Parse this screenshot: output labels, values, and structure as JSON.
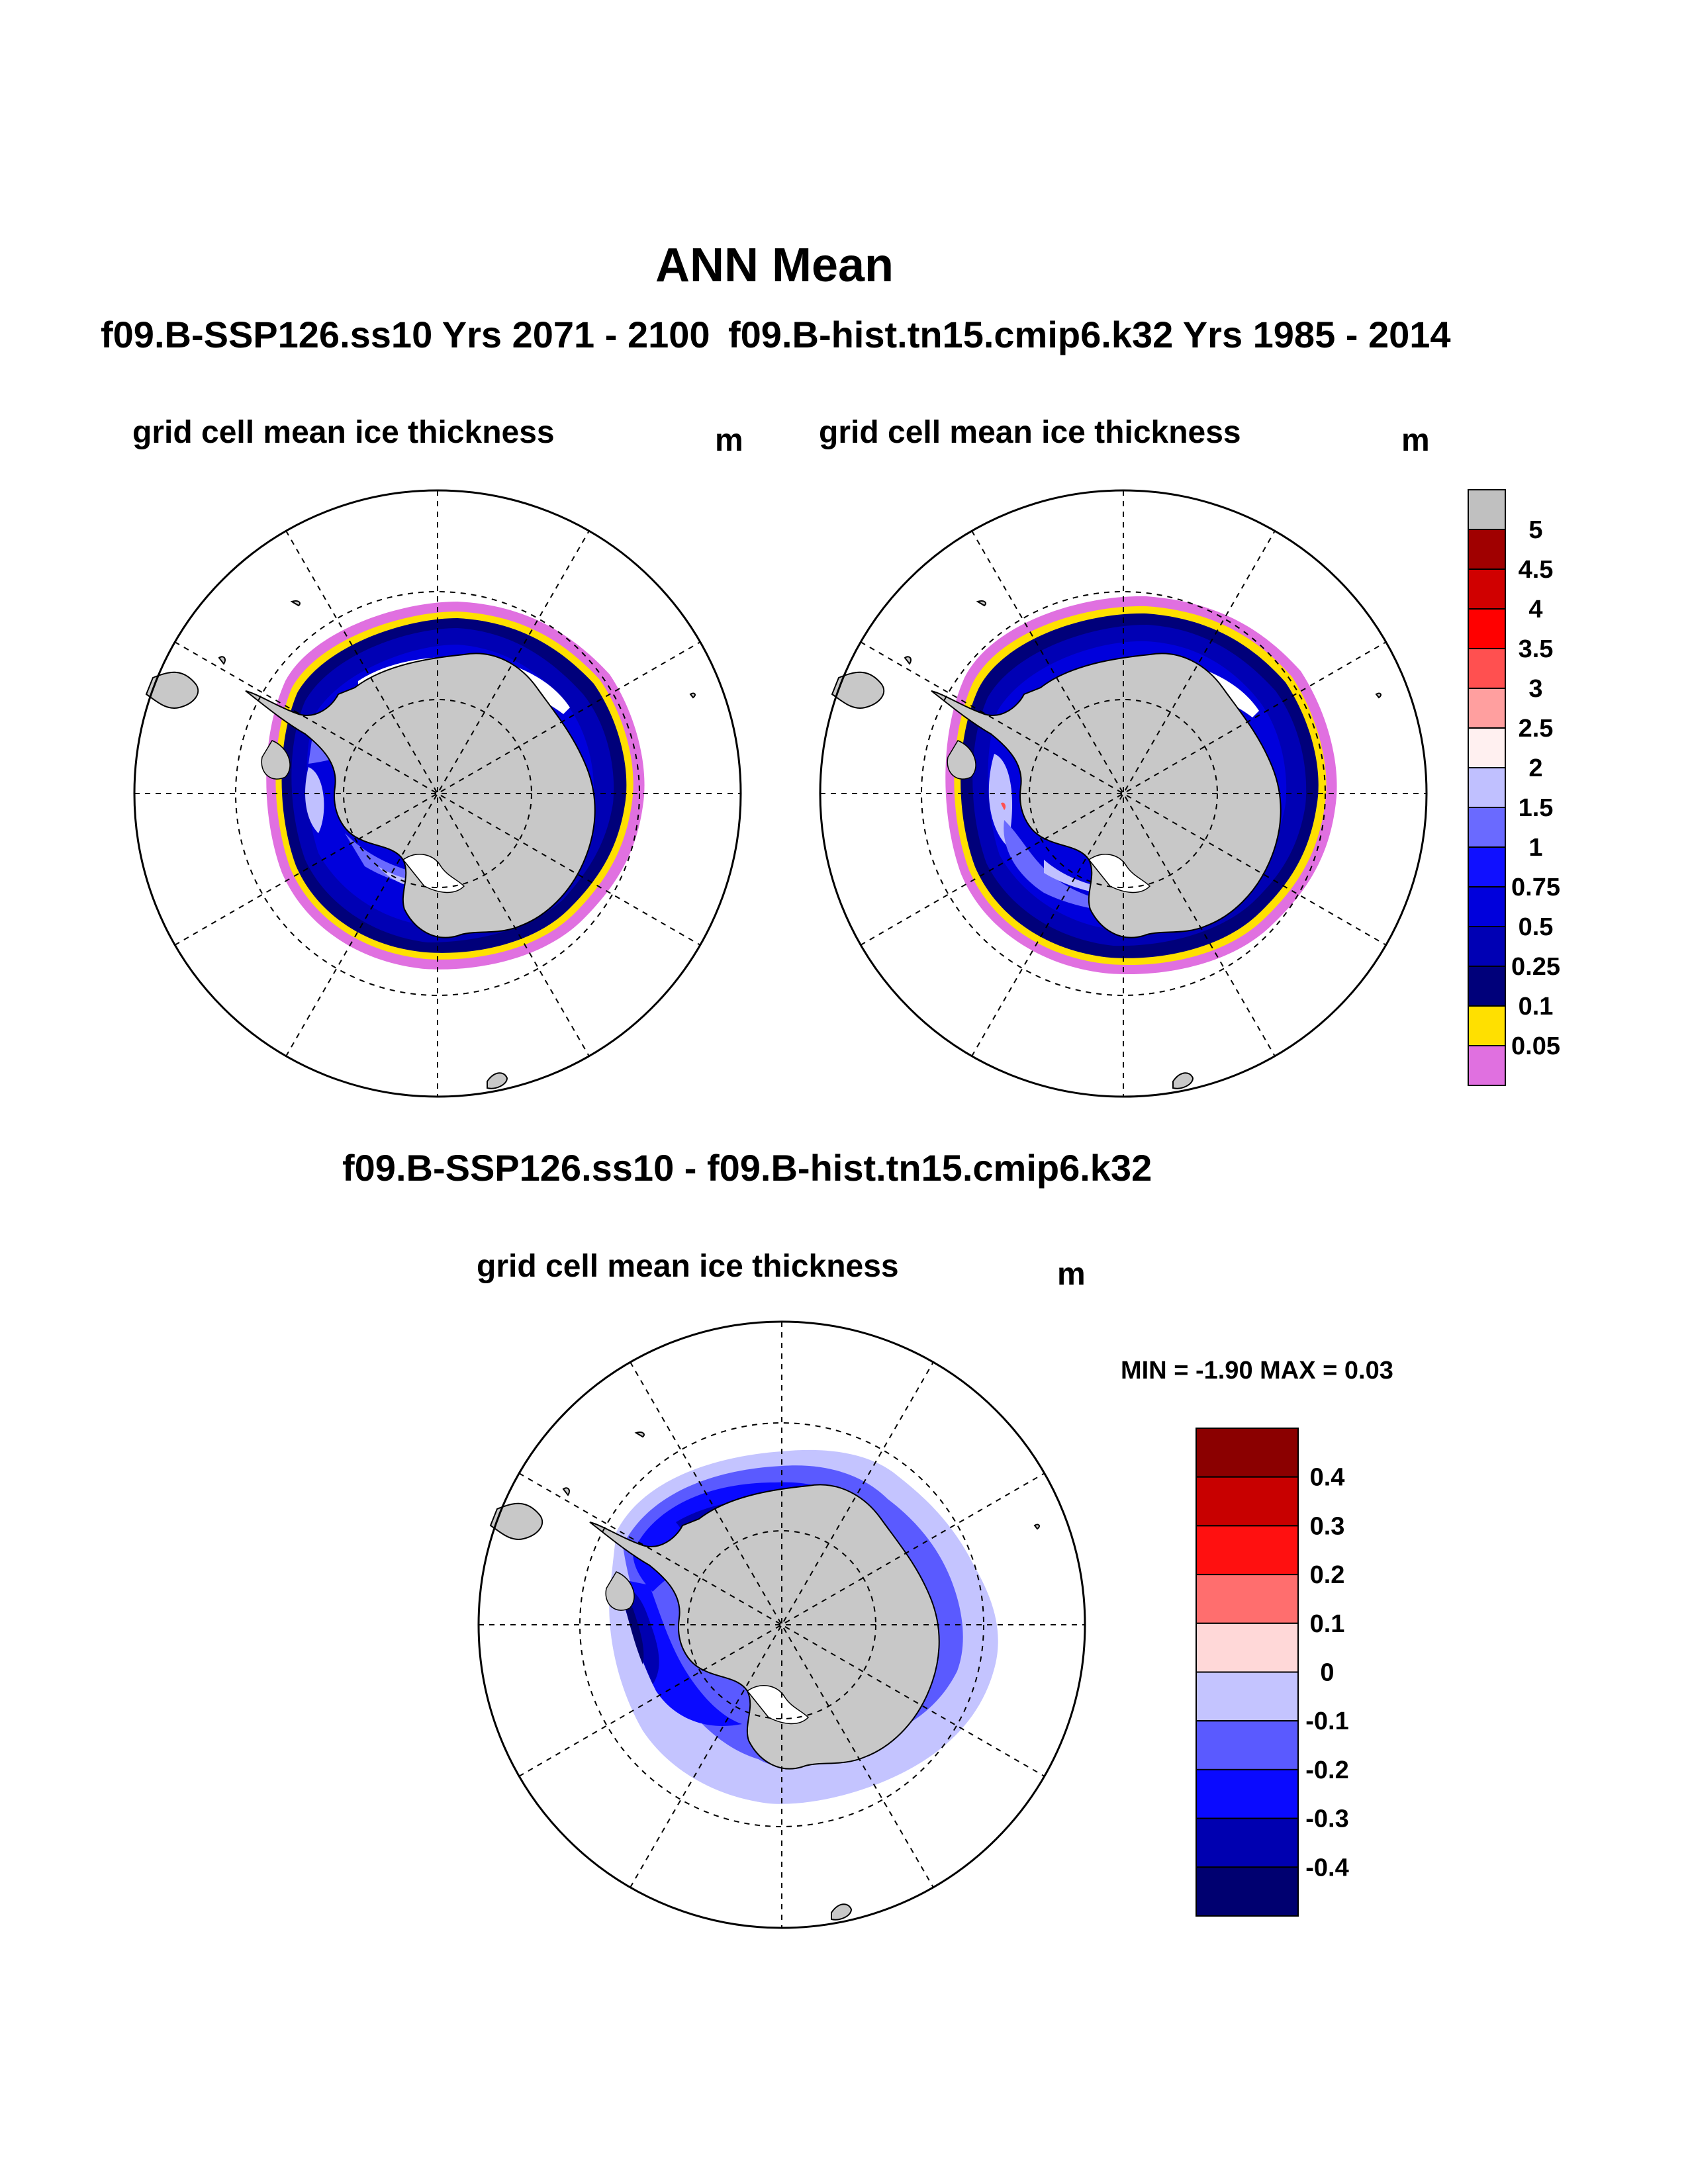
{
  "main_title": "ANN Mean",
  "panels": [
    {
      "case_title": "f09.B-SSP126.ss10  Yrs 2071 - 2100",
      "label": "grid cell mean ice thickness",
      "unit": "m"
    },
    {
      "case_title": "f09.B-hist.tn15.cmip6.k32  Yrs 1985 - 2014",
      "label": "grid cell mean ice thickness",
      "unit": "m"
    },
    {
      "case_title": "f09.B-SSP126.ss10 - f09.B-hist.tn15.cmip6.k32",
      "label": "grid cell mean ice thickness",
      "unit": "m"
    }
  ],
  "minmax_text": "MIN =  -1.90 MAX =   0.03",
  "colorbars": {
    "thickness": {
      "labels": [
        "5",
        "4.5",
        "4",
        "3.5",
        "3",
        "2.5",
        "2",
        "1.5",
        "1",
        "0.75",
        "0.5",
        "0.25",
        "0.1",
        "0.05"
      ],
      "colors": [
        "#c0c0c0",
        "#a00000",
        "#d00000",
        "#ff0000",
        "#ff5050",
        "#ff9f9f",
        "#fff0f0",
        "#c0c0ff",
        "#6a6aff",
        "#1010ff",
        "#0000dc",
        "#0000b4",
        "#00007a",
        "#ffe000",
        "#e070e0"
      ]
    },
    "difference": {
      "labels": [
        "0.4",
        "0.3",
        "0.2",
        "0.1",
        "0",
        "-0.1",
        "-0.2",
        "-0.3",
        "-0.4"
      ],
      "colors": [
        "#8b0000",
        "#c80000",
        "#ff1010",
        "#ff6e6e",
        "#ffd8d8",
        "#c4c4ff",
        "#5a5aff",
        "#0a0aff",
        "#0000b0",
        "#000070"
      ]
    }
  },
  "colors": {
    "land": "#c8c8c8",
    "ocean": "#ffffff",
    "outline": "#000000"
  }
}
